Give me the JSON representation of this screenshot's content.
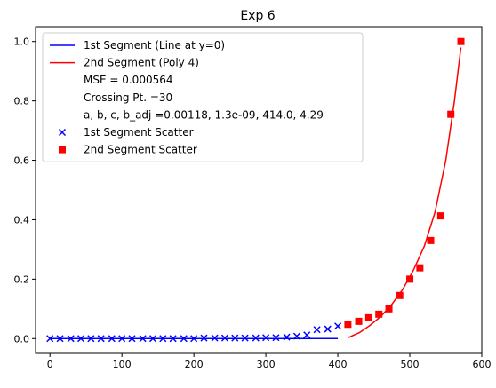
{
  "chart_data": {
    "type": "line",
    "title": "Exp 6",
    "xlabel": "",
    "ylabel": "",
    "xlim": [
      -20,
      600
    ],
    "ylim": [
      -0.05,
      1.05
    ],
    "xticks": [
      0,
      100,
      200,
      300,
      400,
      500,
      600
    ],
    "yticks": [
      0.0,
      0.2,
      0.4,
      0.6,
      0.8,
      1.0
    ],
    "xtick_labels": [
      "0",
      "100",
      "200",
      "300",
      "400",
      "500",
      "600"
    ],
    "ytick_labels": [
      "0.0",
      "0.2",
      "0.4",
      "0.6",
      "0.8",
      "1.0"
    ],
    "grid": false,
    "legend_position": "top-left",
    "legend": [
      {
        "label": "1st Segment (Line at y=0)",
        "marker": "line",
        "color": "#0000ff"
      },
      {
        "label": "2nd Segment (Poly 4)",
        "marker": "line",
        "color": "#ff0000"
      },
      {
        "label": "MSE = 0.000564",
        "marker": "none",
        "color": ""
      },
      {
        "label": "Crossing Pt. =30",
        "marker": "none",
        "color": ""
      },
      {
        "label": "a, b, c, b_adj =0.00118, 1.3e-09, 414.0, 4.29",
        "marker": "none",
        "color": ""
      },
      {
        "label": "1st Segment Scatter",
        "marker": "x",
        "color": "#0000ff"
      },
      {
        "label": "2nd Segment Scatter",
        "marker": "square",
        "color": "#ff0000"
      }
    ],
    "series": [
      {
        "name": "1st Segment (Line at y=0)",
        "kind": "line",
        "color": "#0000ff",
        "x": [
          0,
          400
        ],
        "y": [
          0.0,
          0.0
        ]
      },
      {
        "name": "2nd Segment (Poly 4)",
        "kind": "line",
        "color": "#ff0000",
        "x": [
          414,
          430,
          445,
          460,
          475,
          490,
          505,
          520,
          535,
          550,
          562,
          571
        ],
        "y": [
          0.003,
          0.02,
          0.045,
          0.075,
          0.115,
          0.165,
          0.23,
          0.31,
          0.425,
          0.6,
          0.8,
          0.98
        ]
      },
      {
        "name": "1st Segment Scatter",
        "kind": "scatter",
        "marker": "x",
        "color": "#0000ff",
        "x": [
          0,
          14,
          29,
          43,
          57,
          71,
          86,
          100,
          114,
          129,
          143,
          157,
          171,
          186,
          200,
          214,
          229,
          243,
          257,
          271,
          286,
          300,
          314,
          329,
          343,
          357,
          371,
          386,
          400
        ],
        "y": [
          0.0,
          0.0,
          0.0,
          0.0,
          0.0,
          0.0,
          0.0,
          0.0,
          0.0,
          0.0,
          0.0,
          0.0,
          0.0,
          0.0,
          0.0,
          0.002,
          0.002,
          0.002,
          0.002,
          0.002,
          0.002,
          0.003,
          0.003,
          0.005,
          0.008,
          0.012,
          0.03,
          0.032,
          0.042
        ]
      },
      {
        "name": "2nd Segment Scatter",
        "kind": "scatter",
        "marker": "square",
        "color": "#ff0000",
        "x": [
          414,
          429,
          443,
          457,
          471,
          486,
          500,
          514,
          529,
          543,
          557,
          571
        ],
        "y": [
          0.048,
          0.058,
          0.07,
          0.082,
          0.1,
          0.145,
          0.2,
          0.238,
          0.33,
          0.413,
          0.755,
          1.0
        ]
      }
    ]
  }
}
